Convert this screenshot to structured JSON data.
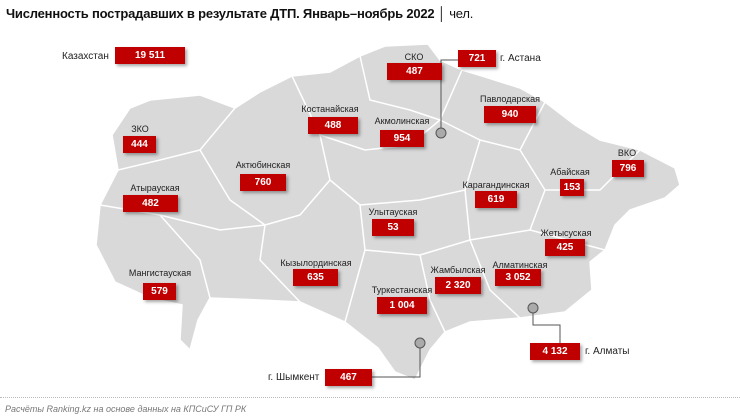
{
  "title": {
    "text": "Численность пострадавших в результате ДТП. Январь–ноябрь 2022",
    "unit": "│ чел."
  },
  "total": {
    "label": "Казахстан",
    "value": "19 511"
  },
  "regions": [
    {
      "name": "СКО",
      "value": "487"
    },
    {
      "name": "Павлодарская",
      "value": "940"
    },
    {
      "name": "Костанайская",
      "value": "488"
    },
    {
      "name": "Акмолинская",
      "value": "954"
    },
    {
      "name": "ЗКО",
      "value": "444"
    },
    {
      "name": "Актюбинская",
      "value": "760"
    },
    {
      "name": "ВКО",
      "value": "796"
    },
    {
      "name": "Абайская",
      "value": "153"
    },
    {
      "name": "Карагандинская",
      "value": "619"
    },
    {
      "name": "Атырауская",
      "value": "482"
    },
    {
      "name": "Улытауская",
      "value": "53"
    },
    {
      "name": "Жетысуская",
      "value": "425"
    },
    {
      "name": "Мангистауская",
      "value": "579"
    },
    {
      "name": "Кызылординская",
      "value": "635"
    },
    {
      "name": "Алматинская",
      "value": "3 052"
    },
    {
      "name": "Жамбылская",
      "value": "2 320"
    },
    {
      "name": "Туркестанская",
      "value": "1 004"
    }
  ],
  "cities": [
    {
      "name": "г. Астана",
      "value": "721"
    },
    {
      "name": "г. Алматы",
      "value": "4 132"
    },
    {
      "name": "г. Шымкент",
      "value": "467"
    }
  ],
  "colors": {
    "box": "#c00000",
    "map": "#d9d9d9",
    "border": "#ffffff"
  },
  "source": "Расчёты Ranking.kz на основе данных на КПСиСУ ГП РК"
}
